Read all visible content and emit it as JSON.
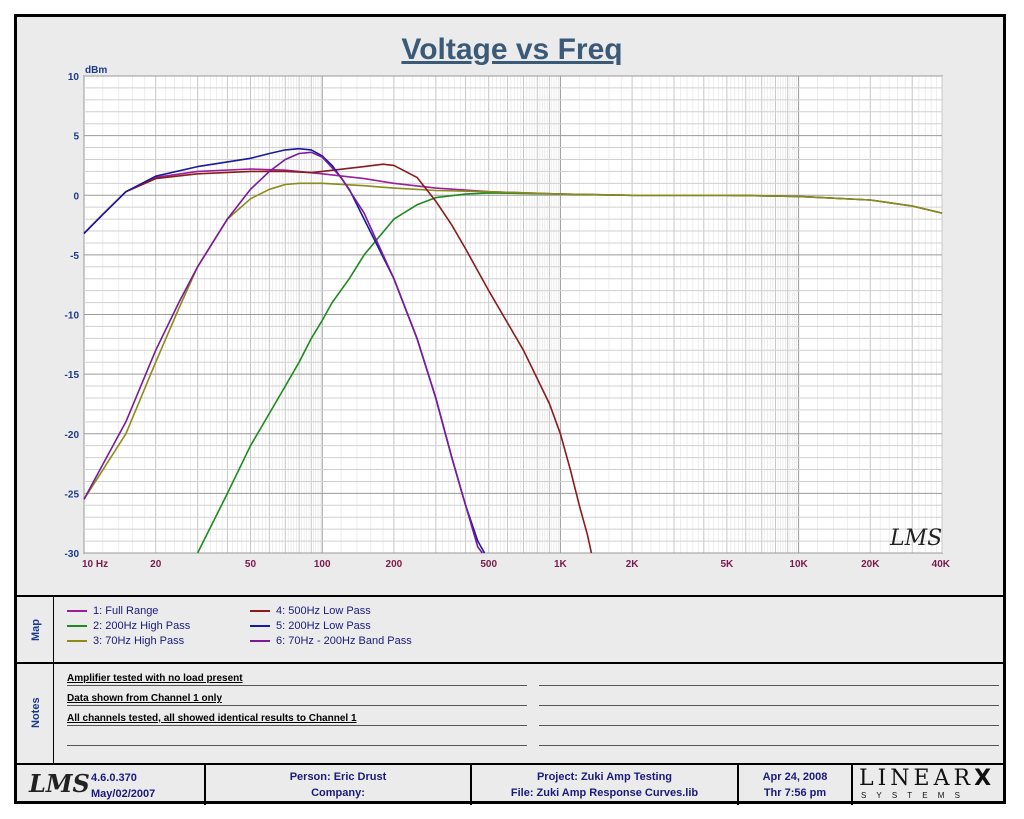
{
  "chart_data": {
    "type": "line",
    "title": "Voltage vs Freq",
    "ylabel": "dBm",
    "x_scale": "log",
    "xlim": [
      10,
      40000
    ],
    "ylim": [
      -30,
      10
    ],
    "y_ticks": [
      "10",
      "5",
      "0",
      "-5",
      "-10",
      "-15",
      "-20",
      "-25",
      "-30"
    ],
    "x_ticks": [
      {
        "value": 10,
        "label": "10  Hz"
      },
      {
        "value": 20,
        "label": "20"
      },
      {
        "value": 50,
        "label": "50"
      },
      {
        "value": 100,
        "label": "100"
      },
      {
        "value": 200,
        "label": "200"
      },
      {
        "value": 500,
        "label": "500"
      },
      {
        "value": 1000,
        "label": "1K"
      },
      {
        "value": 2000,
        "label": "2K"
      },
      {
        "value": 5000,
        "label": "5K"
      },
      {
        "value": 10000,
        "label": "10K"
      },
      {
        "value": 20000,
        "label": "20K"
      },
      {
        "value": 40000,
        "label": "40K"
      }
    ],
    "grid": true,
    "watermark": "LMS",
    "series": [
      {
        "name": "1: Full Range",
        "color": "#9b1e9b",
        "points": [
          [
            10,
            -3.2
          ],
          [
            12,
            -1.6
          ],
          [
            15,
            0.3
          ],
          [
            20,
            1.5
          ],
          [
            30,
            2.0
          ],
          [
            50,
            2.2
          ],
          [
            70,
            2.1
          ],
          [
            100,
            1.8
          ],
          [
            150,
            1.4
          ],
          [
            200,
            1.0
          ],
          [
            300,
            0.6
          ],
          [
            500,
            0.3
          ],
          [
            1000,
            0.1
          ],
          [
            2000,
            0.0
          ],
          [
            5000,
            0.0
          ],
          [
            10000,
            -0.1
          ],
          [
            20000,
            -0.4
          ],
          [
            30000,
            -0.9
          ],
          [
            40000,
            -1.5
          ]
        ]
      },
      {
        "name": "2: 200Hz High Pass",
        "color": "#1f8a1f",
        "points": [
          [
            30,
            -30
          ],
          [
            40,
            -25
          ],
          [
            50,
            -21
          ],
          [
            70,
            -16
          ],
          [
            80,
            -14
          ],
          [
            90,
            -12
          ],
          [
            100,
            -10.5
          ],
          [
            110,
            -9
          ],
          [
            130,
            -7
          ],
          [
            150,
            -5
          ],
          [
            200,
            -2
          ],
          [
            250,
            -0.8
          ],
          [
            300,
            -0.2
          ],
          [
            400,
            0.1
          ],
          [
            500,
            0.2
          ],
          [
            1000,
            0.1
          ],
          [
            2000,
            0.0
          ],
          [
            5000,
            0.0
          ],
          [
            10000,
            -0.1
          ],
          [
            20000,
            -0.4
          ],
          [
            30000,
            -0.9
          ],
          [
            40000,
            -1.5
          ]
        ]
      },
      {
        "name": "3: 70Hz High Pass",
        "color": "#8b8b1a",
        "points": [
          [
            10,
            -25.5
          ],
          [
            15,
            -20
          ],
          [
            20,
            -14
          ],
          [
            25,
            -9.5
          ],
          [
            30,
            -6
          ],
          [
            40,
            -2
          ],
          [
            50,
            -0.3
          ],
          [
            60,
            0.5
          ],
          [
            70,
            0.9
          ],
          [
            80,
            1.0
          ],
          [
            100,
            1.0
          ],
          [
            150,
            0.8
          ],
          [
            200,
            0.6
          ],
          [
            300,
            0.4
          ],
          [
            500,
            0.3
          ],
          [
            1000,
            0.1
          ],
          [
            2000,
            0.0
          ],
          [
            5000,
            0.0
          ],
          [
            10000,
            -0.1
          ],
          [
            20000,
            -0.4
          ],
          [
            30000,
            -0.9
          ],
          [
            40000,
            -1.5
          ]
        ]
      },
      {
        "name": "4: 500Hz Low Pass",
        "color": "#8b1a1a",
        "points": [
          [
            10,
            -3.2
          ],
          [
            12,
            -1.6
          ],
          [
            15,
            0.3
          ],
          [
            20,
            1.4
          ],
          [
            30,
            1.8
          ],
          [
            50,
            2.0
          ],
          [
            70,
            2.0
          ],
          [
            90,
            1.9
          ],
          [
            100,
            2.0
          ],
          [
            150,
            2.4
          ],
          [
            180,
            2.6
          ],
          [
            200,
            2.5
          ],
          [
            250,
            1.5
          ],
          [
            300,
            -0.5
          ],
          [
            350,
            -2.5
          ],
          [
            400,
            -4.5
          ],
          [
            500,
            -8
          ],
          [
            700,
            -13
          ],
          [
            900,
            -17.5
          ],
          [
            1000,
            -20
          ],
          [
            1100,
            -23
          ],
          [
            1200,
            -26
          ],
          [
            1300,
            -28.5
          ],
          [
            1350,
            -30
          ]
        ]
      },
      {
        "name": "5: 200Hz Low Pass",
        "color": "#1a1a9b",
        "points": [
          [
            10,
            -3.2
          ],
          [
            12,
            -1.6
          ],
          [
            15,
            0.3
          ],
          [
            20,
            1.6
          ],
          [
            30,
            2.4
          ],
          [
            40,
            2.8
          ],
          [
            50,
            3.1
          ],
          [
            60,
            3.5
          ],
          [
            70,
            3.8
          ],
          [
            80,
            3.9
          ],
          [
            90,
            3.8
          ],
          [
            100,
            3.3
          ],
          [
            110,
            2.5
          ],
          [
            130,
            0.5
          ],
          [
            150,
            -2
          ],
          [
            200,
            -7
          ],
          [
            250,
            -12
          ],
          [
            300,
            -17
          ],
          [
            350,
            -22
          ],
          [
            400,
            -26
          ],
          [
            450,
            -29
          ],
          [
            480,
            -30
          ]
        ]
      },
      {
        "name": "6: 70Hz - 200Hz Band Pass",
        "color": "#7a1a9b",
        "points": [
          [
            10,
            -25.5
          ],
          [
            15,
            -19
          ],
          [
            20,
            -13
          ],
          [
            25,
            -9
          ],
          [
            30,
            -6
          ],
          [
            40,
            -2
          ],
          [
            50,
            0.5
          ],
          [
            60,
            2
          ],
          [
            70,
            3
          ],
          [
            80,
            3.5
          ],
          [
            90,
            3.6
          ],
          [
            100,
            3.2
          ],
          [
            120,
            1.5
          ],
          [
            150,
            -1.5
          ],
          [
            200,
            -7
          ],
          [
            250,
            -12
          ],
          [
            300,
            -17
          ],
          [
            350,
            -22
          ],
          [
            400,
            -26
          ],
          [
            450,
            -29.5
          ],
          [
            470,
            -30
          ]
        ]
      }
    ]
  },
  "legend": {
    "label": "Map",
    "items": [
      {
        "label": "1: Full Range",
        "color": "#9b1e9b"
      },
      {
        "label": "2: 200Hz High Pass",
        "color": "#1f8a1f"
      },
      {
        "label": "3: 70Hz High Pass",
        "color": "#8b8b1a"
      },
      {
        "label": "4: 500Hz Low Pass",
        "color": "#8b1a1a"
      },
      {
        "label": "5: 200Hz Low Pass",
        "color": "#1a1a9b"
      },
      {
        "label": "6: 70Hz - 200Hz Band Pass",
        "color": "#7a1a9b"
      }
    ]
  },
  "notes": {
    "label": "Notes",
    "lines": [
      "Amplifier tested with no load present",
      "Data shown from Channel 1 only",
      "All channels tested, all showed identical results to Channel 1",
      ""
    ]
  },
  "footer": {
    "logo": "LMS",
    "version": "4.6.0.370",
    "version_date": "May/02/2007",
    "person": "Person: Eric Drust",
    "company": "Company:",
    "project": "Project: Zuki Amp Testing",
    "file": "File: Zuki Amp Response Curves.lib",
    "date": "Apr 24, 2008",
    "time": "Thr  7:56 pm",
    "brand_top": "LINEAR",
    "brand_x": "X",
    "brand_bottom": "S Y S T E M S"
  }
}
